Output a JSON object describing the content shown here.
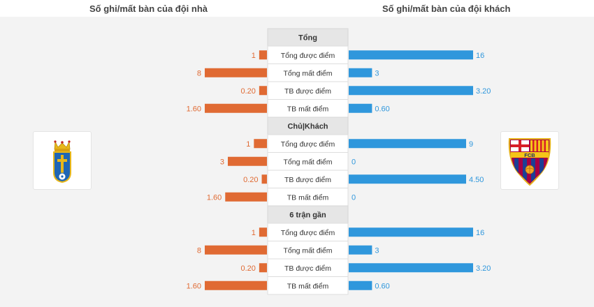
{
  "header": {
    "home_title": "Số ghi/mất bàn của đội nhà",
    "away_title": "Số ghi/mất bàn của đội khách"
  },
  "colors": {
    "home_bar": "#e06a33",
    "away_bar": "#2f97dc",
    "home_text": "#e06a33",
    "away_text": "#2f97dc"
  },
  "chart_data": [
    {
      "type": "bar",
      "title": "Tổng",
      "categories": [
        "Tổng được điểm",
        "Tổng mất điểm",
        "TB được điểm",
        "TB mất điểm"
      ],
      "home_labels": [
        "1",
        "8",
        "0.20",
        "1.60"
      ],
      "home_values": [
        1,
        8,
        0.2,
        1.6
      ],
      "away_labels": [
        "16",
        "3",
        "3.20",
        "0.60"
      ],
      "away_values": [
        16,
        3,
        3.2,
        0.6
      ]
    },
    {
      "type": "bar",
      "title": "Chủ|Khách",
      "categories": [
        "Tổng được điểm",
        "Tổng mất điểm",
        "TB được điểm",
        "TB mất điểm"
      ],
      "home_labels": [
        "1",
        "3",
        "0.20",
        "1.60"
      ],
      "home_values": [
        1,
        3,
        0.2,
        1.6
      ],
      "away_labels": [
        "9",
        "0",
        "4.50",
        "0"
      ],
      "away_values": [
        9,
        0,
        4.5,
        0
      ]
    },
    {
      "type": "bar",
      "title": "6 trận gần",
      "categories": [
        "Tổng được điểm",
        "Tổng mất điểm",
        "TB được điểm",
        "TB mất điểm"
      ],
      "home_labels": [
        "1",
        "8",
        "0.20",
        "1.60"
      ],
      "home_values": [
        1,
        8,
        0.2,
        1.6
      ],
      "away_labels": [
        "16",
        "3",
        "3.20",
        "0.60"
      ],
      "away_values": [
        16,
        3,
        3.2,
        0.6
      ]
    }
  ],
  "logos": {
    "home": {
      "icon": "real-oviedo-crest-icon"
    },
    "away": {
      "icon": "fc-barcelona-crest-icon",
      "text": "FCB"
    }
  }
}
